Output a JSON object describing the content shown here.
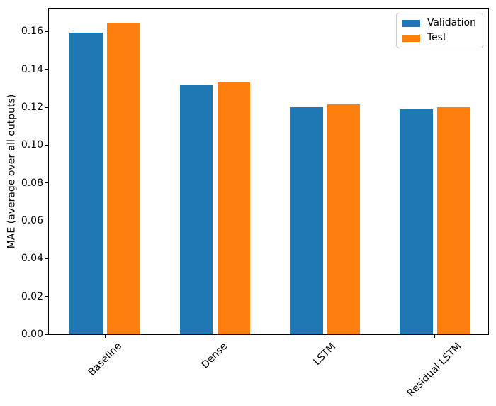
{
  "figure": {
    "background": "#ffffff",
    "axis_color": "#000000",
    "text_color": "#000000"
  },
  "chart_data": {
    "type": "bar",
    "title": "",
    "xlabel": "",
    "ylabel": "MAE (average over all outputs)",
    "categories": [
      "Baseline",
      "Dense",
      "LSTM",
      "Residual LSTM"
    ],
    "series": [
      {
        "name": "Validation",
        "color": "#1f77b4",
        "values": [
          0.1595,
          0.1315,
          0.12,
          0.119
        ]
      },
      {
        "name": "Test",
        "color": "#ff7f0e",
        "values": [
          0.1645,
          0.133,
          0.1215,
          0.12
        ]
      }
    ],
    "ylim": [
      0,
      0.1725
    ],
    "xlim": [
      -0.516,
      3.49
    ],
    "yticks": {
      "values": [
        0,
        0.02,
        0.04,
        0.06,
        0.08,
        0.1,
        0.12,
        0.14,
        0.16
      ],
      "labels": [
        "0.00",
        "0.02",
        "0.04",
        "0.06",
        "0.08",
        "0.10",
        "0.12",
        "0.14",
        "0.16"
      ]
    },
    "bar_width": 0.3,
    "bar_offsets": [
      -0.17,
      0.17
    ],
    "xtick_rotation": 45,
    "grid": false,
    "legend_position": "upper right"
  }
}
